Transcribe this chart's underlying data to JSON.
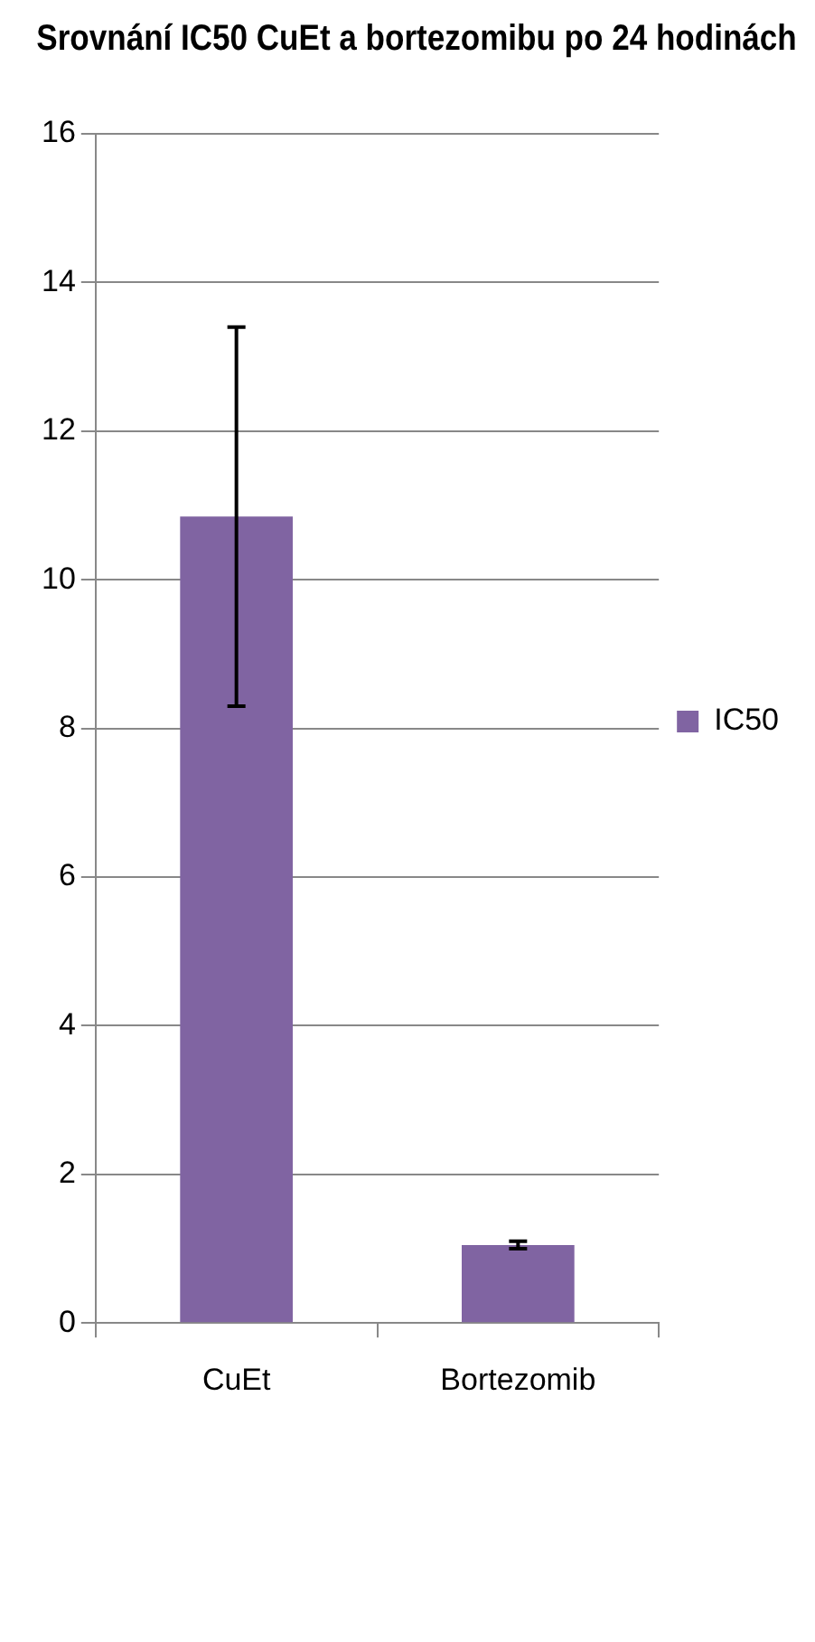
{
  "chart_data": {
    "type": "bar",
    "title": "Srovnání IC50 CuEt a bortezomibu po 24 hodinách",
    "categories": [
      "CuEt",
      "Bortezomib"
    ],
    "series": [
      {
        "name": "IC50",
        "color": "#8064a2",
        "values": [
          10.85,
          1.05
        ],
        "errors": [
          [
            8.3,
            13.4
          ],
          [
            1.0,
            1.1
          ]
        ]
      }
    ],
    "ylim": [
      0,
      16
    ],
    "yticks": [
      0,
      2,
      4,
      6,
      8,
      10,
      12,
      14,
      16
    ],
    "grid": "y",
    "legend": "right"
  }
}
